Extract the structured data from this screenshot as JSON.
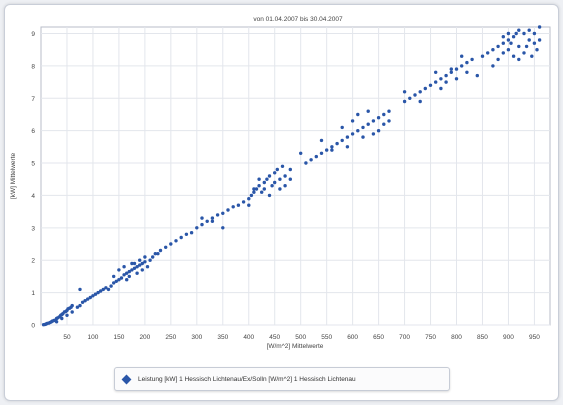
{
  "chart_data": {
    "type": "scatter",
    "title": "von 01.04.2007 bis 30.04.2007",
    "xlabel": "[W/m^2] Mittelwerte",
    "ylabel": "[kW] Mittelwerte",
    "xlim": [
      0,
      980
    ],
    "ylim": [
      0,
      9.2
    ],
    "xticks": [
      50,
      100,
      150,
      200,
      250,
      300,
      350,
      400,
      450,
      500,
      550,
      600,
      650,
      700,
      750,
      800,
      850,
      900,
      950
    ],
    "yticks": [
      0,
      1,
      2,
      3,
      4,
      5,
      6,
      7,
      8,
      9
    ],
    "grid": true,
    "legend_position": "bottom",
    "series": [
      {
        "name": "Leistung [kW] 1 Hessisch Lichtenau/Ex/Solln [W/m^2] 1 Hessisch Lichtenau",
        "color": "#2a56a8",
        "points": [
          [
            5,
            0.01
          ],
          [
            8,
            0.02
          ],
          [
            10,
            0.03
          ],
          [
            12,
            0.05
          ],
          [
            15,
            0.06
          ],
          [
            18,
            0.08
          ],
          [
            20,
            0.1
          ],
          [
            22,
            0.12
          ],
          [
            25,
            0.14
          ],
          [
            28,
            0.15
          ],
          [
            30,
            0.2
          ],
          [
            32,
            0.22
          ],
          [
            35,
            0.25
          ],
          [
            38,
            0.3
          ],
          [
            40,
            0.32
          ],
          [
            42,
            0.35
          ],
          [
            45,
            0.4
          ],
          [
            48,
            0.42
          ],
          [
            50,
            0.45
          ],
          [
            52,
            0.5
          ],
          [
            55,
            0.52
          ],
          [
            58,
            0.55
          ],
          [
            60,
            0.6
          ],
          [
            30,
            0.1
          ],
          [
            40,
            0.2
          ],
          [
            50,
            0.3
          ],
          [
            60,
            0.4
          ],
          [
            70,
            0.55
          ],
          [
            75,
            0.6
          ],
          [
            80,
            0.7
          ],
          [
            85,
            0.75
          ],
          [
            90,
            0.8
          ],
          [
            95,
            0.85
          ],
          [
            100,
            0.9
          ],
          [
            105,
            0.95
          ],
          [
            110,
            1.0
          ],
          [
            115,
            1.05
          ],
          [
            120,
            1.1
          ],
          [
            125,
            1.15
          ],
          [
            75,
            1.1
          ],
          [
            130,
            1.1
          ],
          [
            135,
            1.2
          ],
          [
            140,
            1.3
          ],
          [
            145,
            1.35
          ],
          [
            150,
            1.4
          ],
          [
            155,
            1.45
          ],
          [
            160,
            1.55
          ],
          [
            165,
            1.6
          ],
          [
            170,
            1.65
          ],
          [
            175,
            1.7
          ],
          [
            180,
            1.75
          ],
          [
            185,
            1.8
          ],
          [
            190,
            1.85
          ],
          [
            195,
            1.9
          ],
          [
            200,
            1.95
          ],
          [
            140,
            1.5
          ],
          [
            150,
            1.7
          ],
          [
            160,
            1.8
          ],
          [
            170,
            1.5
          ],
          [
            180,
            1.9
          ],
          [
            190,
            2.0
          ],
          [
            200,
            2.1
          ],
          [
            205,
            1.8
          ],
          [
            210,
            2.0
          ],
          [
            185,
            1.6
          ],
          [
            195,
            1.7
          ],
          [
            175,
            1.9
          ],
          [
            165,
            1.4
          ],
          [
            215,
            2.1
          ],
          [
            220,
            2.2
          ],
          [
            225,
            2.2
          ],
          [
            230,
            2.3
          ],
          [
            240,
            2.4
          ],
          [
            250,
            2.5
          ],
          [
            260,
            2.6
          ],
          [
            270,
            2.7
          ],
          [
            280,
            2.8
          ],
          [
            290,
            2.85
          ],
          [
            300,
            3.0
          ],
          [
            310,
            3.1
          ],
          [
            320,
            3.2
          ],
          [
            330,
            3.3
          ],
          [
            340,
            3.4
          ],
          [
            350,
            3.45
          ],
          [
            360,
            3.55
          ],
          [
            370,
            3.65
          ],
          [
            380,
            3.7
          ],
          [
            390,
            3.8
          ],
          [
            310,
            3.3
          ],
          [
            330,
            3.2
          ],
          [
            350,
            3.0
          ],
          [
            400,
            3.9
          ],
          [
            405,
            4.0
          ],
          [
            410,
            4.1
          ],
          [
            415,
            4.2
          ],
          [
            420,
            4.3
          ],
          [
            425,
            4.1
          ],
          [
            430,
            4.4
          ],
          [
            435,
            4.5
          ],
          [
            440,
            4.6
          ],
          [
            445,
            4.3
          ],
          [
            450,
            4.7
          ],
          [
            455,
            4.8
          ],
          [
            460,
            4.5
          ],
          [
            465,
            4.9
          ],
          [
            470,
            4.6
          ],
          [
            420,
            4.5
          ],
          [
            430,
            4.2
          ],
          [
            440,
            4.0
          ],
          [
            450,
            4.4
          ],
          [
            460,
            4.2
          ],
          [
            470,
            4.3
          ],
          [
            480,
            4.8
          ],
          [
            480,
            4.5
          ],
          [
            400,
            3.7
          ],
          [
            410,
            4.2
          ],
          [
            500,
            5.3
          ],
          [
            510,
            5.0
          ],
          [
            520,
            5.1
          ],
          [
            530,
            5.2
          ],
          [
            540,
            5.3
          ],
          [
            550,
            5.4
          ],
          [
            560,
            5.5
          ],
          [
            570,
            5.6
          ],
          [
            580,
            5.7
          ],
          [
            590,
            5.8
          ],
          [
            600,
            5.9
          ],
          [
            610,
            6.0
          ],
          [
            620,
            6.1
          ],
          [
            630,
            6.2
          ],
          [
            640,
            6.3
          ],
          [
            650,
            6.4
          ],
          [
            660,
            6.5
          ],
          [
            600,
            6.3
          ],
          [
            610,
            6.5
          ],
          [
            620,
            5.8
          ],
          [
            630,
            6.6
          ],
          [
            640,
            5.9
          ],
          [
            650,
            6.0
          ],
          [
            660,
            6.2
          ],
          [
            670,
            6.3
          ],
          [
            580,
            6.1
          ],
          [
            590,
            5.5
          ],
          [
            670,
            6.6
          ],
          [
            540,
            5.7
          ],
          [
            560,
            5.4
          ],
          [
            700,
            6.9
          ],
          [
            710,
            7.0
          ],
          [
            720,
            7.1
          ],
          [
            730,
            7.2
          ],
          [
            740,
            7.3
          ],
          [
            750,
            7.4
          ],
          [
            760,
            7.5
          ],
          [
            770,
            7.6
          ],
          [
            780,
            7.7
          ],
          [
            790,
            7.8
          ],
          [
            800,
            7.9
          ],
          [
            810,
            8.0
          ],
          [
            820,
            8.1
          ],
          [
            760,
            7.8
          ],
          [
            770,
            7.3
          ],
          [
            780,
            7.5
          ],
          [
            790,
            7.9
          ],
          [
            800,
            7.6
          ],
          [
            810,
            8.3
          ],
          [
            820,
            7.8
          ],
          [
            830,
            8.2
          ],
          [
            840,
            7.7
          ],
          [
            700,
            7.2
          ],
          [
            730,
            6.9
          ],
          [
            850,
            8.3
          ],
          [
            860,
            8.4
          ],
          [
            870,
            8.5
          ],
          [
            880,
            8.6
          ],
          [
            890,
            8.7
          ],
          [
            900,
            8.8
          ],
          [
            910,
            8.9
          ],
          [
            920,
            8.6
          ],
          [
            930,
            9.0
          ],
          [
            940,
            9.1
          ],
          [
            950,
            8.7
          ],
          [
            960,
            9.2
          ],
          [
            880,
            8.2
          ],
          [
            890,
            8.9
          ],
          [
            900,
            8.5
          ],
          [
            910,
            8.3
          ],
          [
            920,
            9.1
          ],
          [
            930,
            8.4
          ],
          [
            940,
            8.8
          ],
          [
            950,
            9.0
          ],
          [
            870,
            8.0
          ],
          [
            960,
            8.8
          ],
          [
            900,
            9.0
          ],
          [
            920,
            8.2
          ],
          [
            935,
            8.6
          ],
          [
            945,
            8.3
          ],
          [
            955,
            8.5
          ],
          [
            890,
            8.4
          ],
          [
            905,
            8.7
          ],
          [
            915,
            9.0
          ]
        ]
      }
    ]
  }
}
